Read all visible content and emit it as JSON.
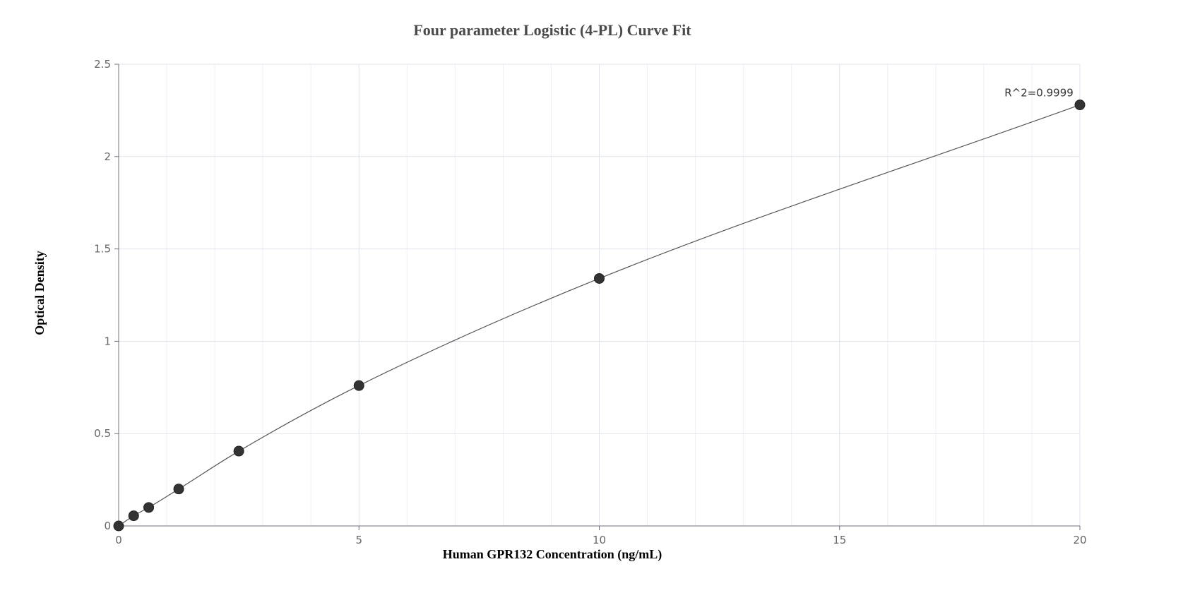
{
  "chart_data": {
    "type": "scatter",
    "title": "Four parameter Logistic (4-PL) Curve Fit",
    "xlabel": "Human GPR132 Concentration (ng/mL)",
    "ylabel": "Optical Density",
    "xlim": [
      0,
      20
    ],
    "ylim": [
      0,
      2.5
    ],
    "x_ticks": [
      "0",
      "5",
      "10",
      "15",
      "20"
    ],
    "y_ticks": [
      "0",
      "0.5",
      "1",
      "1.5",
      "2",
      "2.5"
    ],
    "grid": true,
    "series": [
      {
        "x": [
          0,
          0.3125,
          0.625,
          1.25,
          2.5,
          5,
          10,
          20
        ],
        "y": [
          0.0,
          0.055,
          0.1,
          0.2,
          0.405,
          0.76,
          1.34,
          2.28
        ]
      }
    ],
    "fit_curve": {
      "type": "4-PL",
      "color": "#555555"
    },
    "annotations": [
      {
        "text": "R^2=0.9999",
        "x": 20,
        "y": 2.28
      }
    ],
    "colors": {
      "points": "#333333",
      "curve": "#555555",
      "grid": "#dfe3ea",
      "axis": "#6e7079"
    }
  }
}
